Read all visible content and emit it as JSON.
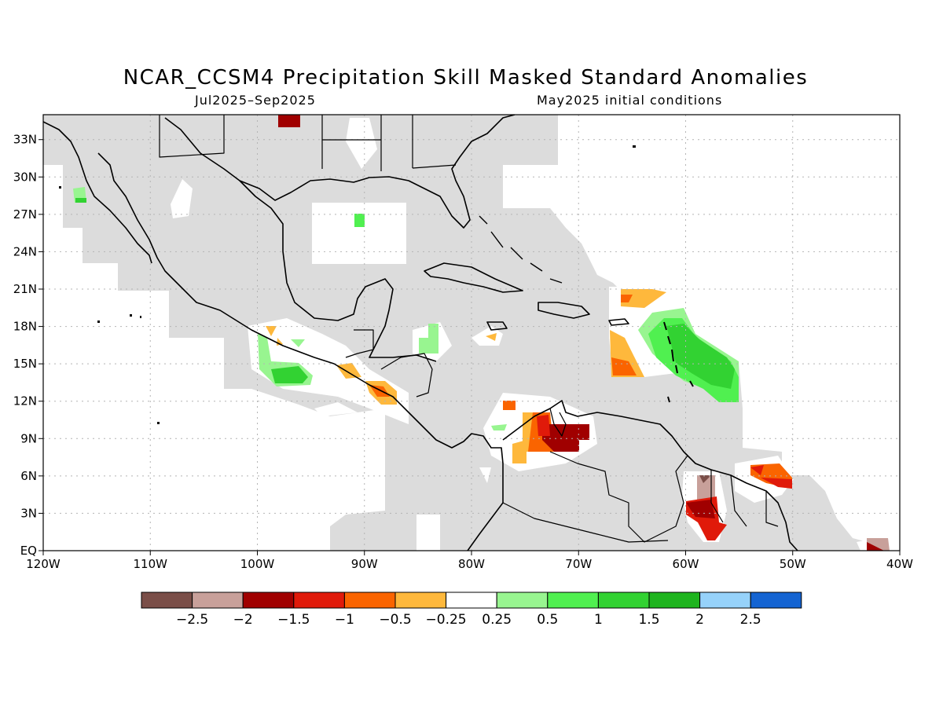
{
  "title": "NCAR_CCSM4 Precipitation Skill Masked Standard Anomalies",
  "subtitle_left": "Jul2025–Sep2025",
  "subtitle_right": "May2025 initial conditions",
  "map": {
    "projection": "lat-lon",
    "lon_range": [
      -120,
      -40
    ],
    "lat_range": [
      0,
      35
    ],
    "grid": true,
    "land_color": "#dcdcdc",
    "ocean_color": "#ffffff",
    "lon_ticks": [
      "120W",
      "110W",
      "100W",
      "90W",
      "80W",
      "70W",
      "60W",
      "50W",
      "40W"
    ],
    "lat_ticks": [
      "EQ",
      "3N",
      "6N",
      "9N",
      "12N",
      "15N",
      "18N",
      "21N",
      "24N",
      "27N",
      "30N",
      "33N"
    ]
  },
  "colorbar": {
    "colors": [
      "#7a4e48",
      "#c8a09a",
      "#a00000",
      "#e01a0a",
      "#fa6400",
      "#feb83c",
      "#ffffff",
      "#98f590",
      "#50f050",
      "#32d232",
      "#1eb41e",
      "#96d2fa",
      "#1464d2"
    ],
    "labels": [
      "−2.5",
      "−2",
      "−1.5",
      "−1",
      "−0.5",
      "−0.25",
      "0.25",
      "0.5",
      "1",
      "1.5",
      "2",
      "2.5"
    ]
  },
  "anomaly_regions": [
    {
      "name": "north-gulf-dry",
      "level": -1.5,
      "color": "#a00000"
    },
    {
      "name": "baja-wet",
      "level": 0.5,
      "color": "#50f050"
    },
    {
      "name": "gulf-center-wet",
      "level": 1,
      "color": "#50f050"
    },
    {
      "name": "pacific-mexico-wet",
      "level": 1,
      "color": "#32d232"
    },
    {
      "name": "guatemala-dry",
      "level": -0.5,
      "color": "#feb83c"
    },
    {
      "name": "honduras-coast-wet",
      "level": 0.5,
      "color": "#98f590"
    },
    {
      "name": "colombia-dry",
      "level": -1,
      "color": "#fa6400"
    },
    {
      "name": "venezuela-dry",
      "level": -1.5,
      "color": "#a00000"
    },
    {
      "name": "puerto-rico-dry",
      "level": -0.5,
      "color": "#feb83c"
    },
    {
      "name": "leeward-islands-wet",
      "level": 1,
      "color": "#32d232"
    },
    {
      "name": "guyana-dry",
      "level": -2,
      "color": "#a00000"
    },
    {
      "name": "suriname-dry",
      "level": -1,
      "color": "#e01a0a"
    },
    {
      "name": "brazil-coast-dry",
      "level": -2,
      "color": "#c8a09a"
    }
  ]
}
